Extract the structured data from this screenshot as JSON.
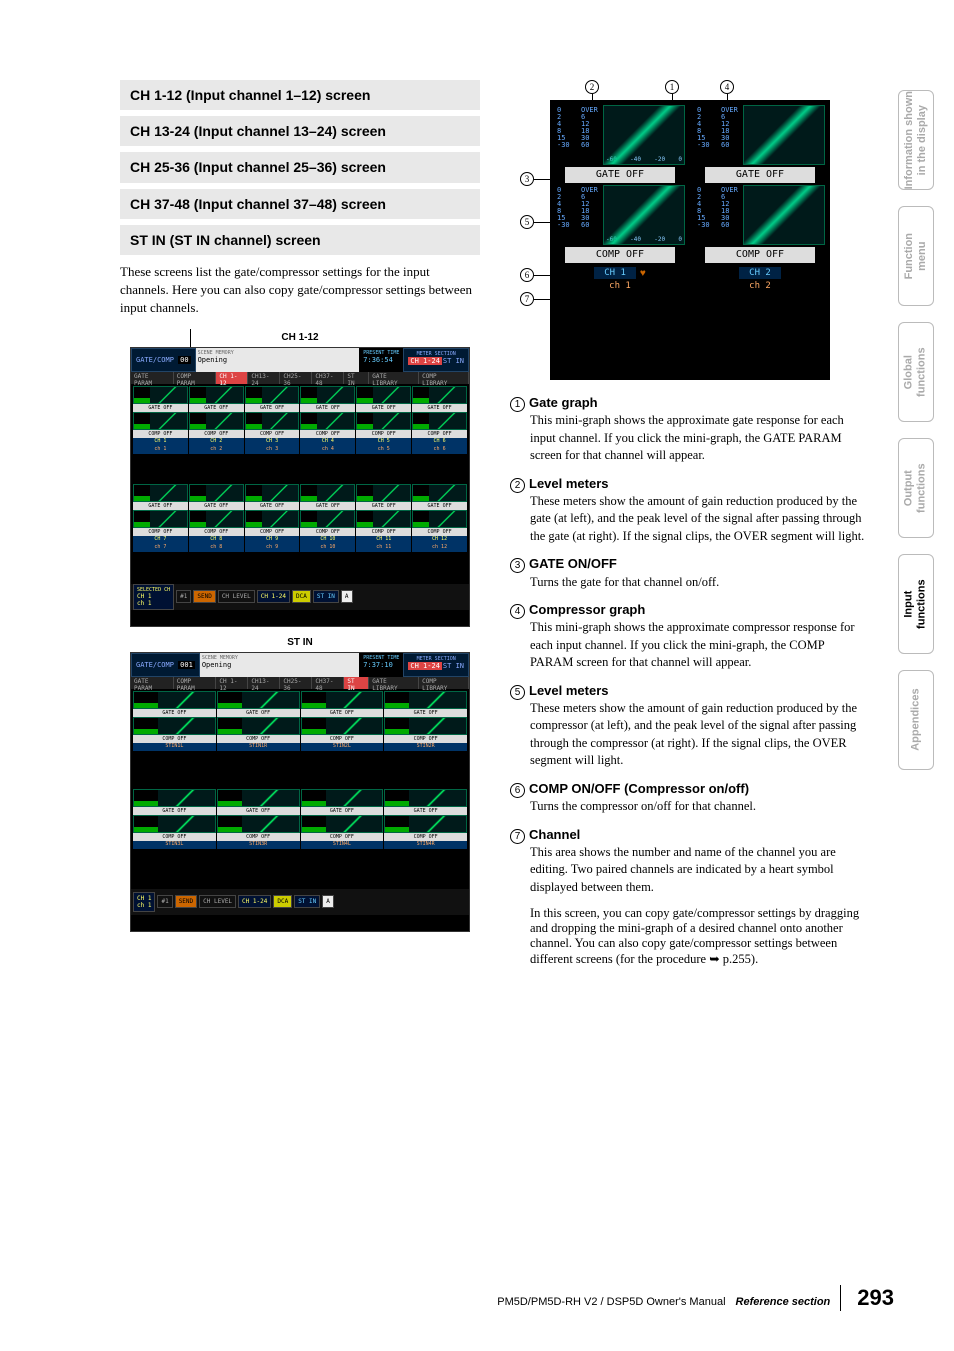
{
  "sections": {
    "h1": "CH 1-12 (Input channel 1–12) screen",
    "h2": "CH 13-24 (Input channel 13–24) screen",
    "h3": "CH 25-36 (Input channel 25–36) screen",
    "h4": "CH 37-48 (Input channel 37–48) screen",
    "h5": "ST IN (ST IN channel) screen"
  },
  "intro": "These screens list the gate/compressor settings for the input channels. Here you can also copy gate/compressor settings between input channels.",
  "labels": {
    "ch112": "CH 1-12",
    "stin": "ST IN"
  },
  "screenshot1": {
    "func": "GATE/COMP",
    "num": "00",
    "scene": "Opening",
    "scene2": "002 BET1",
    "scene_label": "SCENE MEMORY",
    "time_label": "PRESENT TIME",
    "time": "7:36:54",
    "meter_label": "METER SECTION",
    "meter1": "CH 1-24",
    "meter2": "ST IN",
    "tabs": [
      "GATE PARAM",
      "COMP PARAM",
      "CH 1-12",
      "CH13-24",
      "CH25-36",
      "CH37-48",
      "ST IN",
      "GATE LIBRARY",
      "COMP LIBRARY"
    ],
    "active_tab": 2,
    "gate": "GATE OFF",
    "comp": "COMP OFF",
    "bottom": {
      "sel": "SELECTED CH",
      "ch": "CH  1",
      "chn": "ch  1",
      "mix": "MIX SECTION",
      "mixn": "#1",
      "send": "SEND",
      "enc": "ENCODER",
      "lvl": "CH LEVEL",
      "inp": "INPUT CH",
      "inpn": "CH 1-24",
      "dca": "DCA",
      "stin": "ST IN",
      "a": "A"
    }
  },
  "screenshot2": {
    "num": "001",
    "time": "7:37:10",
    "active_tab": 6,
    "ch_labels": [
      "STIN1L",
      "STIN1R",
      "STIN2L",
      "STIN2R",
      "STIN3L",
      "STIN3R",
      "STIN4L",
      "STIN4R"
    ]
  },
  "anno": {
    "meters_l": [
      "0",
      "2",
      "4",
      "8",
      "15",
      "-30"
    ],
    "meters_r": [
      "OVER",
      "6",
      "12",
      "18",
      "30",
      "60"
    ],
    "curve_l": "20",
    "curve_r": "-40",
    "axis": [
      "-60",
      "-40",
      "-20",
      "0"
    ],
    "gate_off": "GATE OFF",
    "comp_off": "COMP OFF",
    "ch1": "CH  1",
    "ch2": "CH  2",
    "chn1": "ch  1",
    "chn2": "ch  2"
  },
  "descriptions": [
    {
      "n": "1",
      "title": "Gate graph",
      "body": "This mini-graph shows the approximate gate response for each input channel. If you click the mini-graph, the GATE PARAM screen for that channel will appear."
    },
    {
      "n": "2",
      "title": "Level meters",
      "body": "These meters show the amount of gain reduction produced by the gate (at left), and the peak level of the signal after passing through the gate (at right). If the signal clips, the OVER segment will light."
    },
    {
      "n": "3",
      "title": "GATE ON/OFF",
      "body": "Turns the gate for that channel on/off."
    },
    {
      "n": "4",
      "title": "Compressor graph",
      "body": "This mini-graph shows the approximate compressor response for each input channel. If you click the mini-graph, the COMP PARAM screen for that channel will appear."
    },
    {
      "n": "5",
      "title": "Level meters",
      "body": "These meters show the amount of gain reduction produced by the compressor (at left), and the peak level of the signal after passing through the compressor (at right). If the signal clips, the OVER segment will light."
    },
    {
      "n": "6",
      "title": "COMP ON/OFF (Compressor on/off)",
      "body": "Turns the compressor on/off for that channel."
    },
    {
      "n": "7",
      "title": "Channel",
      "body": "This area shows the number and name of the channel you are editing. Two paired channels are indicated by a heart symbol displayed between them."
    }
  ],
  "extra_para": "In this screen, you can copy gate/compressor settings by dragging and dropping the mini-graph of a desired channel onto another channel. You can also copy gate/compressor settings between different screens (for the procedure ➥ p.255).",
  "side_tabs": [
    "Information shown\nin the display",
    "Function\nmenu",
    "Global\nfunctions",
    "Output\nfunctions",
    "Input\nfunctions",
    "Appendices"
  ],
  "active_side": 4,
  "footer": {
    "model": "PM5D/PM5D-RH V2 / DSP5D Owner's Manual",
    "section": "Reference section",
    "page": "293"
  }
}
